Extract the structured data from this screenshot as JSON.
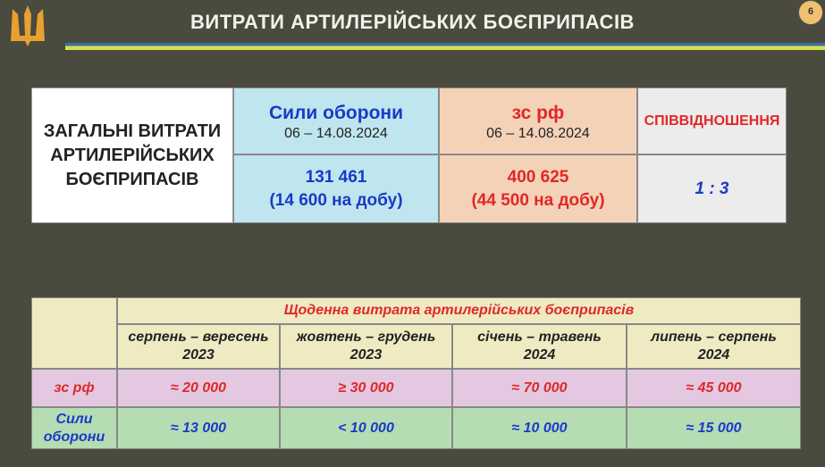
{
  "header": {
    "title": "ВИТРАТИ АРТИЛЕРІЙСЬКИХ БОЄПРИПАСІВ",
    "page_number": "6",
    "emblem_icon": "trident-icon"
  },
  "summary": {
    "label": "ЗАГАЛЬНІ ВИТРАТИ АРТИЛЕРІЙСЬКИХ БОЄПРИПАСІВ",
    "defense": {
      "name": "Сили оборони",
      "period": "06 – 14.08.2024",
      "total": "131 461",
      "daily": "(14 600 на добу)"
    },
    "russia": {
      "name": "зс рф",
      "period": "06 – 14.08.2024",
      "total": "400 625",
      "daily": "(44 500 на добу)"
    },
    "ratio": {
      "label": "СПІВВІДНОШЕННЯ",
      "value": "1 : 3"
    }
  },
  "daily_table": {
    "title": "Щоденна витрата артилерійських боєприпасів",
    "columns": [
      {
        "months": "серпень – вересень",
        "year": "2023"
      },
      {
        "months": "жовтень – грудень",
        "year": "2023"
      },
      {
        "months": "січень – травень",
        "year": "2024"
      },
      {
        "months": "липень – серпень",
        "year": "2024"
      }
    ],
    "rows": [
      {
        "label": "зс рф",
        "values": [
          "≈ 20 000",
          "≥ 30 000",
          "≈ 70 000",
          "≈ 45 000"
        ]
      },
      {
        "label": "Сили оборони",
        "values": [
          "≈ 13 000",
          "< 10 000",
          "≈ 10 000",
          "≈ 15 000"
        ]
      }
    ]
  },
  "colors": {
    "background": "#4a4a3e",
    "defense_cell": "#bfe6ee",
    "russia_cell": "#f4d2b8",
    "russia_row": "#e4c8e2",
    "defense_row": "#b6dcb4",
    "header_row": "#efeac2"
  }
}
